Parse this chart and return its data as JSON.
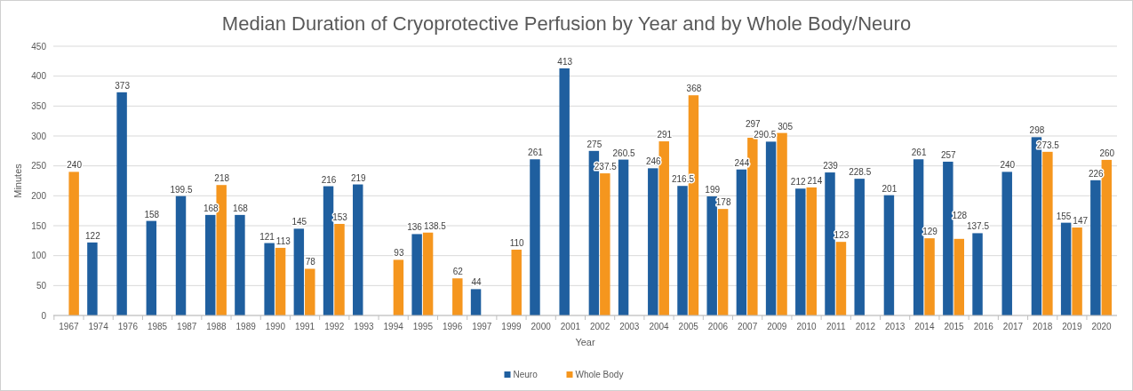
{
  "chart_data": {
    "type": "bar",
    "title": "Median Duration of Cryoprotective Perfusion by Year and by Whole Body/Neuro",
    "xlabel": "Year",
    "ylabel": "Minutes",
    "categories": [
      "1967",
      "1974",
      "1976",
      "1985",
      "1987",
      "1988",
      "1989",
      "1990",
      "1991",
      "1992",
      "1993",
      "1994",
      "1995",
      "1996",
      "1997",
      "1999",
      "2000",
      "2001",
      "2002",
      "2003",
      "2004",
      "2005",
      "2006",
      "2007",
      "2009",
      "2010",
      "2011",
      "2012",
      "2013",
      "2014",
      "2015",
      "2016",
      "2017",
      "2018",
      "2019",
      "2020"
    ],
    "series": [
      {
        "name": "Neuro",
        "color": "#1f5f9f",
        "values": [
          null,
          122,
          373,
          158,
          199.5,
          168,
          168,
          121,
          145,
          216,
          219,
          null,
          136,
          null,
          44,
          null,
          261,
          413,
          275,
          260.5,
          246,
          216.5,
          199,
          244,
          290.5,
          212,
          239,
          228.5,
          201,
          261,
          257,
          137.5,
          240,
          298,
          155,
          226
        ]
      },
      {
        "name": "Whole Body",
        "color": "#f5961e",
        "values": [
          240,
          null,
          null,
          null,
          null,
          218,
          null,
          113,
          78,
          153,
          null,
          93,
          138.5,
          62,
          null,
          110,
          null,
          null,
          237.5,
          null,
          291,
          368,
          178,
          297,
          305,
          214,
          123,
          null,
          null,
          129,
          128,
          null,
          null,
          273.5,
          147,
          260
        ]
      }
    ],
    "ylim": [
      0,
      450
    ],
    "yticks": [
      0,
      50,
      100,
      150,
      200,
      250,
      300,
      350,
      400,
      450
    ],
    "grid": "y",
    "legend": "bottom",
    "data_labels": true
  }
}
